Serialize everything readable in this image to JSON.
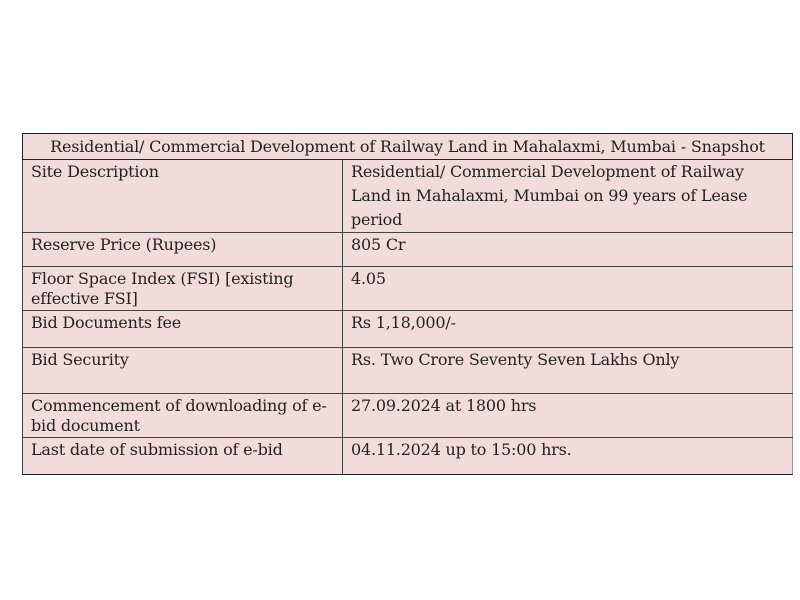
{
  "table": {
    "title": "Residential/ Commercial Development of Railway Land in Mahalaxmi, Mumbai - Snapshot",
    "rows": [
      {
        "label": "Site Description",
        "value": "Residential/ Commercial Development of Railway Land in Mahalaxmi, Mumbai on 99 years of Lease period"
      },
      {
        "label": "Reserve Price (Rupees)",
        "value": "805 Cr"
      },
      {
        "label": "Floor Space Index (FSI) [existing effective FSI]",
        "value": "4.05"
      },
      {
        "label": "Bid Documents fee",
        "value": "Rs 1,18,000/-"
      },
      {
        "label": "Bid Security",
        "value": "Rs. Two Crore Seventy Seven Lakhs Only"
      },
      {
        "label": "Commencement of downloading of e-bid document",
        "value": "27.09.2024 at 1800 hrs"
      },
      {
        "label": "Last date of submission of e-bid",
        "value": "04.11.2024 up to 15:00 hrs."
      }
    ]
  },
  "colors": {
    "cell_background": "#f2dcdb",
    "border": "#444444"
  }
}
